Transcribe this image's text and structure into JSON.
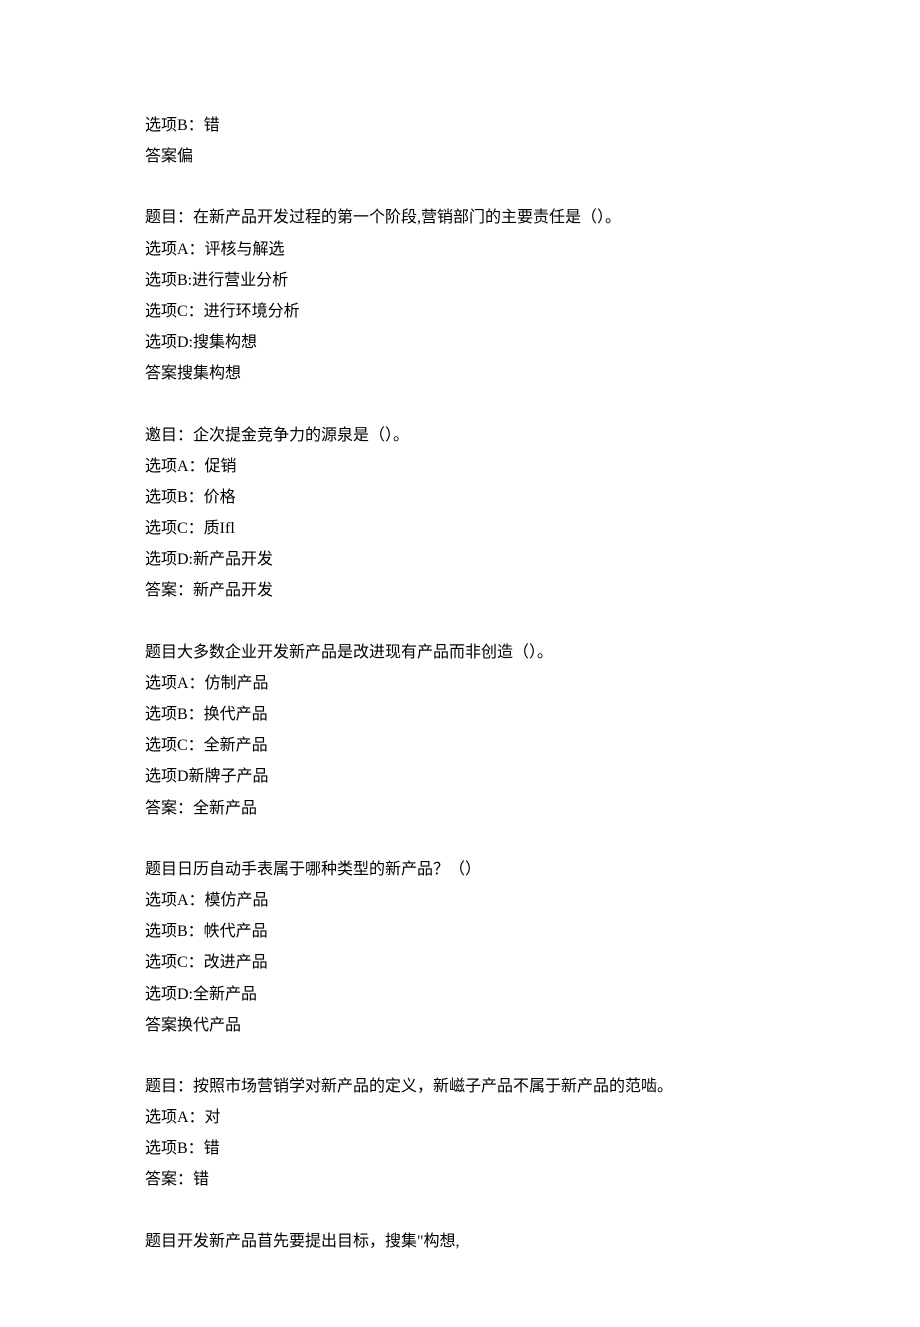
{
  "blocks": [
    {
      "lines": [
        "选项B：错",
        "答案偏"
      ]
    },
    {
      "lines": [
        "题目：在新产品开发过程的第一个阶段,营销部门的主要责任是（）。",
        "选项A：评核与解选",
        "选项B:进行营业分析",
        "选项C：进行环境分析",
        "选项D:搜集构想",
        "答案搜集构想"
      ]
    },
    {
      "lines": [
        "邀目：企次提金竞争力的源泉是（）。",
        "选项A：促销",
        "选项B：价格",
        "选项C：质Ifl",
        "选项D:新产品开发",
        "答案：新产品开发"
      ]
    },
    {
      "lines": [
        "题目大多数企业开发新产品是改进现有产品而非创造（）。",
        "选项A：仿制产品",
        "选项B：换代产品",
        "选项C：全新产品",
        "选项D新牌子产品",
        "答案：全新产品"
      ]
    },
    {
      "lines": [
        "题目日历自动手表属于哪种类型的新产品？（）",
        "选项A：模仿产品",
        "选项B：帙代产品",
        "选项C：改进产品",
        "选项D:全新产品",
        "答案换代产品"
      ]
    },
    {
      "lines": [
        "题目：按照市场营销学对新产品的定义，新嵫子产品不属于新产品的范啮。",
        "选项A：对",
        "选项B：错",
        "答案：错"
      ]
    },
    {
      "lines": [
        "题目开发新产品苜先要提出目标，搜集\"构想,"
      ]
    }
  ]
}
